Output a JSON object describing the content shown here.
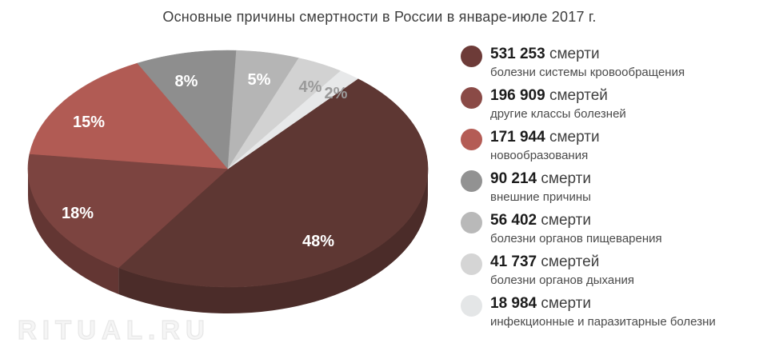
{
  "page": {
    "watermark": "RITUAL.RU"
  },
  "chart_data": {
    "type": "pie",
    "title": "Основные причины смертности в России в январе-июле 2017 г.",
    "legend_position": "right",
    "effect": "3d-pie",
    "rotation_deg": 40.5,
    "slices": [
      {
        "value": 531253,
        "value_label": "531 253",
        "unit": "смерти",
        "category": "болезни системы кровообращения",
        "pct": 48,
        "pct_label": "48%",
        "color": "#5e3733",
        "legend_color": "#6d3b38",
        "pct_label_color": "#ffffff"
      },
      {
        "value": 196909,
        "value_label": "196 909",
        "unit": "смертей",
        "category": "другие классы болезней",
        "pct": 18,
        "pct_label": "18%",
        "color": "#7c4440",
        "legend_color": "#8a4a46",
        "pct_label_color": "#ffffff"
      },
      {
        "value": 171944,
        "value_label": "171 944",
        "unit": "смерти",
        "category": "новообразования",
        "pct": 15,
        "pct_label": "15%",
        "color": "#b15b54",
        "legend_color": "#b45c55",
        "pct_label_color": "#ffffff"
      },
      {
        "value": 90214,
        "value_label": "90 214",
        "unit": "смерти",
        "category": "внешние причины",
        "pct": 8,
        "pct_label": "8%",
        "color": "#8e8e8e",
        "legend_color": "#929292",
        "pct_label_color": "#ffffff"
      },
      {
        "value": 56402,
        "value_label": "56 402",
        "unit": "смерти",
        "category": "болезни органов пищеварения",
        "pct": 5,
        "pct_label": "5%",
        "color": "#b5b5b5",
        "legend_color": "#b9b9b9",
        "pct_label_color": "#ffffff"
      },
      {
        "value": 41737,
        "value_label": "41 737",
        "unit": "смертей",
        "category": "болезни органов дыхания",
        "pct": 4,
        "pct_label": "4%",
        "color": "#d2d2d2",
        "legend_color": "#d5d5d5",
        "pct_label_color": "#9a9a9a"
      },
      {
        "value": 18984,
        "value_label": "18 984",
        "unit": "смерти",
        "category": "инфекционные и паразитарные болезни",
        "pct": 2,
        "pct_label": "2%",
        "color": "#e7e8e9",
        "legend_color": "#e4e6e7",
        "pct_label_color": "#9a9a9a"
      }
    ]
  }
}
